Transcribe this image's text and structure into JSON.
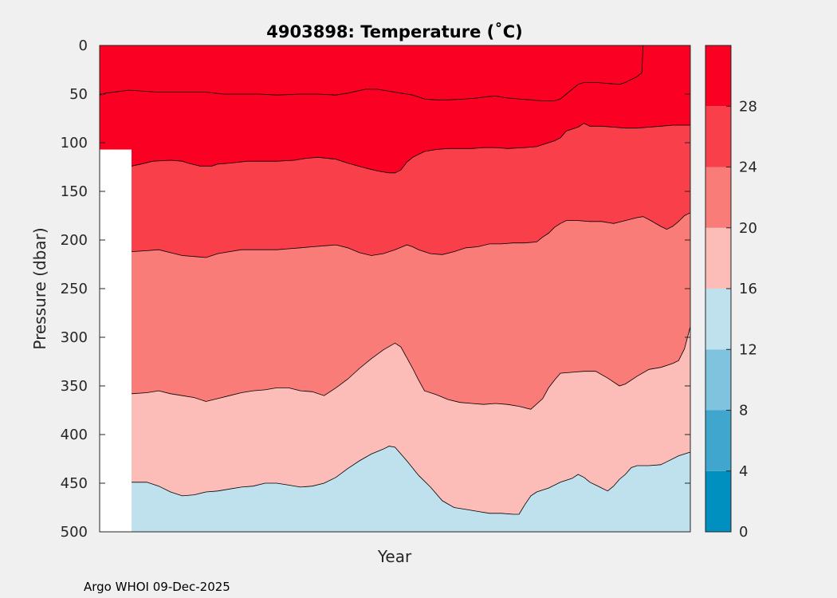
{
  "chart_data": {
    "type": "area",
    "title": "4903898:  Temperature (˚C)",
    "xlabel": "Year",
    "ylabel": "Pressure (dbar)",
    "ylim": [
      0,
      500
    ],
    "y_reversed": true,
    "y_ticks": [
      0,
      50,
      100,
      150,
      200,
      250,
      300,
      350,
      400,
      450,
      500
    ],
    "x_range": [
      0,
      100
    ],
    "colorbar": {
      "range": [
        0,
        32
      ],
      "ticks": [
        0,
        4,
        8,
        12,
        16,
        20,
        24,
        28
      ],
      "bands": [
        {
          "from": 0,
          "to": 4,
          "color": "#0090bf"
        },
        {
          "from": 4,
          "to": 8,
          "color": "#40a6ce"
        },
        {
          "from": 8,
          "to": 12,
          "color": "#80c3df"
        },
        {
          "from": 12,
          "to": 16,
          "color": "#bfe1ee"
        },
        {
          "from": 16,
          "to": 20,
          "color": "#fcbcb8"
        },
        {
          "from": 20,
          "to": 24,
          "color": "#f97c78"
        },
        {
          "from": 24,
          "to": 28,
          "color": "#f9404a"
        },
        {
          "from": 28,
          "to": 32,
          "color": "#fa0023"
        }
      ]
    },
    "no_data_region": {
      "x_start": 0,
      "x_end": 5.4,
      "y_start": 107
    },
    "isotherms": [
      {
        "name": "28C",
        "color": "#fa0023",
        "points": [
          [
            0,
            51
          ],
          [
            1,
            49
          ],
          [
            5,
            46
          ],
          [
            10,
            48
          ],
          [
            12,
            48
          ],
          [
            14,
            48
          ],
          [
            18,
            48
          ],
          [
            21,
            50
          ],
          [
            24,
            50
          ],
          [
            27,
            50
          ],
          [
            30,
            51
          ],
          [
            34,
            50
          ],
          [
            37,
            50
          ],
          [
            40,
            51
          ],
          [
            42,
            49
          ],
          [
            45,
            45
          ],
          [
            47,
            45
          ],
          [
            50,
            48
          ],
          [
            53,
            51
          ],
          [
            55,
            55
          ],
          [
            57,
            56
          ],
          [
            59,
            56
          ],
          [
            62,
            55
          ],
          [
            64,
            54
          ],
          [
            65,
            53
          ],
          [
            67,
            52
          ],
          [
            69,
            54
          ],
          [
            71,
            55
          ],
          [
            73,
            56
          ],
          [
            75,
            57
          ],
          [
            77,
            57
          ],
          [
            78,
            55
          ],
          [
            79,
            50
          ],
          [
            80,
            45
          ],
          [
            81,
            40
          ],
          [
            82,
            38
          ],
          [
            84,
            38
          ],
          [
            86,
            39
          ],
          [
            88,
            40
          ],
          [
            89,
            38
          ],
          [
            90,
            35
          ],
          [
            91,
            32
          ],
          [
            91.8,
            28
          ],
          [
            92,
            0
          ]
        ]
      },
      {
        "name": "24C",
        "color": "#f9404a",
        "points": [
          [
            5.4,
            124
          ],
          [
            7,
            122
          ],
          [
            9,
            119
          ],
          [
            12,
            118
          ],
          [
            14,
            119
          ],
          [
            15,
            121
          ],
          [
            17,
            124
          ],
          [
            19,
            124
          ],
          [
            20,
            122
          ],
          [
            22,
            121
          ],
          [
            25,
            119
          ],
          [
            28,
            119
          ],
          [
            30,
            119
          ],
          [
            33,
            118
          ],
          [
            35,
            116
          ],
          [
            37,
            115
          ],
          [
            40,
            117
          ],
          [
            42,
            121
          ],
          [
            45,
            126
          ],
          [
            47,
            129
          ],
          [
            49,
            131
          ],
          [
            50,
            131
          ],
          [
            51,
            128
          ],
          [
            52,
            120
          ],
          [
            53,
            115
          ],
          [
            55,
            109
          ],
          [
            57,
            107
          ],
          [
            59,
            106
          ],
          [
            61,
            106
          ],
          [
            63,
            106
          ],
          [
            65,
            105
          ],
          [
            67,
            105
          ],
          [
            69,
            106
          ],
          [
            72,
            105
          ],
          [
            74,
            104
          ],
          [
            75,
            102
          ],
          [
            76,
            100
          ],
          [
            77,
            98
          ],
          [
            78,
            95
          ],
          [
            79,
            88
          ],
          [
            80,
            86
          ],
          [
            81,
            84
          ],
          [
            82,
            80
          ],
          [
            83,
            83
          ],
          [
            85,
            83
          ],
          [
            87,
            84
          ],
          [
            89,
            85
          ],
          [
            91,
            85
          ],
          [
            93,
            84
          ],
          [
            95,
            83
          ],
          [
            97,
            82
          ],
          [
            100,
            82
          ]
        ]
      },
      {
        "name": "20C",
        "color": "#f97c78",
        "points": [
          [
            5.4,
            212
          ],
          [
            8,
            211
          ],
          [
            10,
            210
          ],
          [
            12,
            213
          ],
          [
            14,
            216
          ],
          [
            16,
            217
          ],
          [
            18,
            218
          ],
          [
            20,
            214
          ],
          [
            22,
            212
          ],
          [
            24,
            210
          ],
          [
            26,
            210
          ],
          [
            28,
            210
          ],
          [
            30,
            210
          ],
          [
            32,
            209
          ],
          [
            34,
            208
          ],
          [
            36,
            207
          ],
          [
            38,
            206
          ],
          [
            40,
            205
          ],
          [
            42,
            208
          ],
          [
            44,
            213
          ],
          [
            46,
            216
          ],
          [
            48,
            214
          ],
          [
            50,
            210
          ],
          [
            52,
            205
          ],
          [
            53,
            207
          ],
          [
            54,
            210
          ],
          [
            56,
            214
          ],
          [
            58,
            215
          ],
          [
            60,
            212
          ],
          [
            62,
            208
          ],
          [
            64,
            207
          ],
          [
            66,
            204
          ],
          [
            68,
            204
          ],
          [
            70,
            203
          ],
          [
            72,
            203
          ],
          [
            74,
            202
          ],
          [
            75,
            197
          ],
          [
            76,
            193
          ],
          [
            77,
            187
          ],
          [
            78,
            183
          ],
          [
            79,
            180
          ],
          [
            81,
            180
          ],
          [
            83,
            181
          ],
          [
            85,
            181
          ],
          [
            87,
            183
          ],
          [
            89,
            180
          ],
          [
            91,
            177
          ],
          [
            92,
            176
          ],
          [
            93,
            179
          ],
          [
            95,
            186
          ],
          [
            96,
            189
          ],
          [
            97,
            186
          ],
          [
            98,
            181
          ],
          [
            99,
            175
          ],
          [
            100,
            172
          ]
        ]
      },
      {
        "name": "16C",
        "color": "#fcbcb8",
        "points": [
          [
            5.4,
            358
          ],
          [
            8,
            357
          ],
          [
            10,
            355
          ],
          [
            12,
            358
          ],
          [
            14,
            360
          ],
          [
            16,
            362
          ],
          [
            18,
            366
          ],
          [
            20,
            363
          ],
          [
            22,
            360
          ],
          [
            24,
            357
          ],
          [
            26,
            355
          ],
          [
            28,
            354
          ],
          [
            30,
            352
          ],
          [
            32,
            352
          ],
          [
            34,
            355
          ],
          [
            36,
            356
          ],
          [
            38,
            360
          ],
          [
            40,
            352
          ],
          [
            42,
            343
          ],
          [
            44,
            332
          ],
          [
            46,
            322
          ],
          [
            48,
            313
          ],
          [
            50,
            306
          ],
          [
            51,
            310
          ],
          [
            52,
            321
          ],
          [
            53,
            332
          ],
          [
            54,
            344
          ],
          [
            55,
            355
          ],
          [
            57,
            359
          ],
          [
            59,
            364
          ],
          [
            61,
            367
          ],
          [
            63,
            368
          ],
          [
            65,
            369
          ],
          [
            67,
            368
          ],
          [
            69,
            369
          ],
          [
            71,
            371
          ],
          [
            73,
            374
          ],
          [
            75,
            363
          ],
          [
            76,
            352
          ],
          [
            77,
            344
          ],
          [
            78,
            337
          ],
          [
            80,
            336
          ],
          [
            82,
            335
          ],
          [
            84,
            335
          ],
          [
            86,
            342
          ],
          [
            88,
            350
          ],
          [
            89,
            348
          ],
          [
            91,
            340
          ],
          [
            93,
            333
          ],
          [
            95,
            331
          ],
          [
            97,
            327
          ],
          [
            98,
            324
          ],
          [
            99,
            312
          ],
          [
            100,
            289
          ]
        ]
      },
      {
        "name": "12C",
        "color": "#bfe1ee",
        "points": [
          [
            5.4,
            449
          ],
          [
            8,
            449
          ],
          [
            10,
            453
          ],
          [
            12,
            459
          ],
          [
            14,
            463
          ],
          [
            16,
            462
          ],
          [
            18,
            459
          ],
          [
            20,
            458
          ],
          [
            22,
            456
          ],
          [
            24,
            454
          ],
          [
            26,
            453
          ],
          [
            28,
            450
          ],
          [
            30,
            450
          ],
          [
            32,
            452
          ],
          [
            34,
            454
          ],
          [
            36,
            453
          ],
          [
            38,
            450
          ],
          [
            40,
            444
          ],
          [
            42,
            435
          ],
          [
            44,
            427
          ],
          [
            46,
            420
          ],
          [
            48,
            415
          ],
          [
            49,
            412
          ],
          [
            50,
            413
          ],
          [
            52,
            427
          ],
          [
            54,
            442
          ],
          [
            56,
            454
          ],
          [
            58,
            468
          ],
          [
            60,
            475
          ],
          [
            62,
            477
          ],
          [
            64,
            479
          ],
          [
            66,
            481
          ],
          [
            68,
            481
          ],
          [
            70,
            482
          ],
          [
            71,
            482
          ],
          [
            72,
            472
          ],
          [
            73,
            463
          ],
          [
            74,
            459
          ],
          [
            76,
            455
          ],
          [
            78,
            449
          ],
          [
            80,
            445
          ],
          [
            81,
            441
          ],
          [
            82,
            444
          ],
          [
            83,
            449
          ],
          [
            84,
            452
          ],
          [
            85,
            455
          ],
          [
            86,
            458
          ],
          [
            87,
            453
          ],
          [
            88,
            446
          ],
          [
            89,
            441
          ],
          [
            90,
            434
          ],
          [
            91,
            432
          ],
          [
            93,
            432
          ],
          [
            95,
            431
          ],
          [
            96,
            428
          ],
          [
            98,
            422
          ],
          [
            100,
            418
          ]
        ]
      }
    ]
  },
  "footer": {
    "credit": "Argo WHOI 09-Dec-2025"
  }
}
